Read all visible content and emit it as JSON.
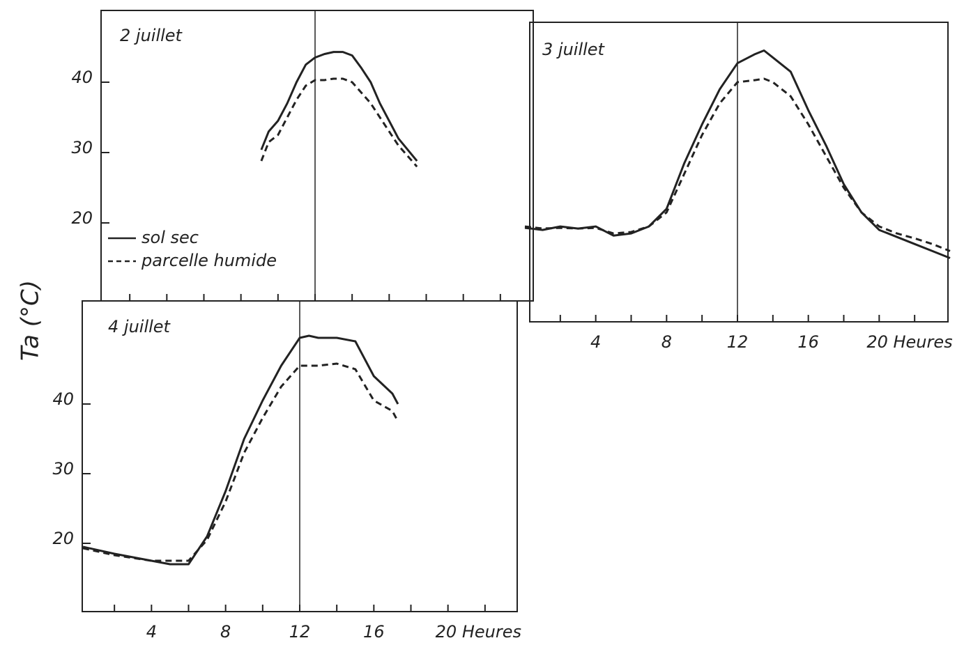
{
  "y_label": "Ta (°C)",
  "chart_data": [
    {
      "type": "line",
      "title": "2 juillet",
      "x": [
        9.1,
        9.5,
        10,
        10.5,
        11,
        11.5,
        12,
        12.5,
        13,
        13.5,
        14,
        14.5,
        15,
        15.5,
        16,
        16.5,
        17.5
      ],
      "series": [
        {
          "name": "sol sec",
          "color": "#222222",
          "line_style": "solid",
          "values": [
            30.4,
            33,
            34.5,
            37,
            40,
            42.5,
            43.5,
            44,
            44.3,
            44.3,
            43.8,
            42,
            40,
            37,
            34.5,
            32,
            28.8
          ]
        },
        {
          "name": "parcelle humide",
          "color": "#222222",
          "line_style": "dashed",
          "values": [
            28.8,
            31.5,
            32.5,
            35,
            37.5,
            39.5,
            40.3,
            40.3,
            40.5,
            40.5,
            40,
            38.5,
            37,
            35,
            33,
            31,
            28
          ]
        }
      ],
      "xlim": [
        0,
        24
      ],
      "ylim": [
        10,
        50
      ],
      "yticks": [
        20,
        30,
        40
      ],
      "minor_xticks": [
        2,
        4,
        6,
        8,
        10,
        12,
        14,
        16,
        18,
        20,
        22
      ],
      "vline": 12,
      "legend": "lower left"
    },
    {
      "type": "line",
      "title": "3 juillet",
      "x": [
        0,
        1,
        2,
        3,
        4,
        5,
        6,
        7,
        8,
        9,
        10,
        11,
        12,
        13,
        13.5,
        14,
        15,
        16,
        17,
        18,
        19,
        20,
        21,
        22,
        23,
        24
      ],
      "series": [
        {
          "name": "sol sec",
          "color": "#222222",
          "line_style": "solid",
          "values": [
            19.3,
            19,
            19.5,
            19.2,
            19.5,
            18.2,
            18.5,
            19.5,
            22,
            28.5,
            34,
            39,
            42.7,
            44,
            44.5,
            43.5,
            41.5,
            36,
            31,
            25.5,
            21.5,
            19,
            18,
            17,
            16,
            15
          ]
        },
        {
          "name": "parcelle humide",
          "color": "#222222",
          "line_style": "dashed",
          "values": [
            19.5,
            19.2,
            19.3,
            19.2,
            19.3,
            18.5,
            18.7,
            19.5,
            21.5,
            27,
            32.5,
            37,
            40,
            40.3,
            40.5,
            40,
            38,
            34,
            29.5,
            25,
            21.5,
            19.5,
            18.5,
            17.8,
            17,
            16
          ]
        }
      ],
      "xlim": [
        0,
        24
      ],
      "ylim": [
        10,
        50
      ],
      "xticks": [
        4,
        8,
        12,
        16,
        {
          "value": 20,
          "label": "20 Heures"
        }
      ],
      "minor_xticks": [
        2,
        6,
        10,
        14,
        18,
        22
      ],
      "vline": 12
    },
    {
      "type": "line",
      "title": "4 juillet",
      "x": [
        0.3,
        2,
        4,
        5,
        6,
        7,
        8,
        9,
        10,
        11,
        12,
        12.5,
        13,
        14,
        15,
        16,
        17,
        17.3
      ],
      "series": [
        {
          "name": "sol sec",
          "color": "#222222",
          "line_style": "solid",
          "values": [
            19.5,
            18.5,
            17.5,
            17,
            17,
            21,
            27.5,
            35,
            40.5,
            45.5,
            49.5,
            49.8,
            49.5,
            49.5,
            49,
            44,
            41.5,
            40
          ]
        },
        {
          "name": "parcelle humide",
          "color": "#222222",
          "line_style": "dashed",
          "values": [
            19.3,
            18.3,
            17.5,
            17.5,
            17.5,
            20.5,
            26,
            33,
            38,
            42.5,
            45.5,
            45.5,
            45.5,
            45.8,
            45,
            40.5,
            39,
            37.5
          ]
        }
      ],
      "xlim": [
        0,
        24
      ],
      "ylim": [
        10,
        50
      ],
      "yticks": [
        20,
        30,
        40
      ],
      "xticks": [
        4,
        8,
        12,
        16,
        {
          "value": 20,
          "label": "20 Heures"
        }
      ],
      "minor_xticks": [
        2,
        6,
        10,
        14,
        18,
        22
      ],
      "vline": 12
    }
  ]
}
